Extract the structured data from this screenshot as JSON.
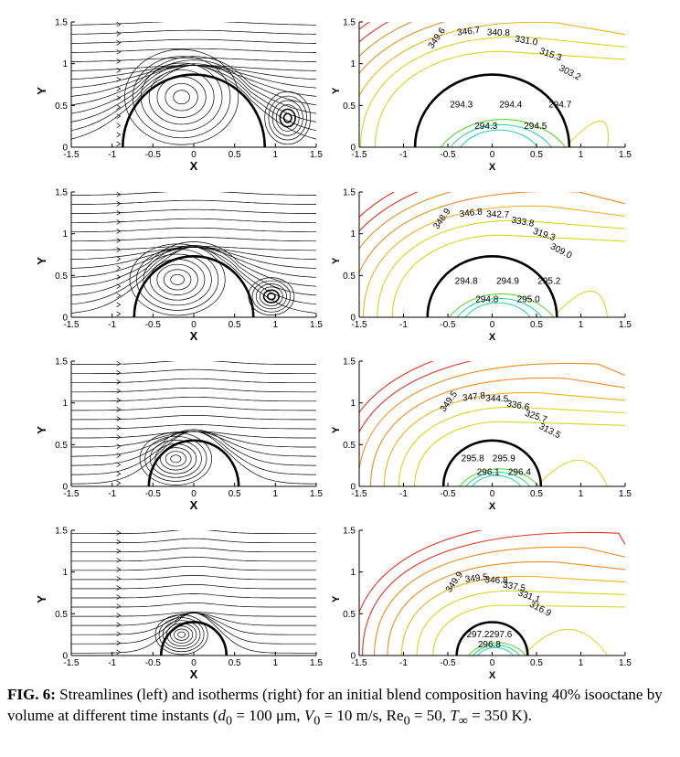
{
  "caption": {
    "label": "FIG. 6:",
    "text_1": "Streamlines (left) and isotherms (right) for an initial blend composition having 40% isooctane by volume at different time instants (",
    "d0_sym": "d",
    "d0_sub": "0",
    "d0_val": " = 100 μm, ",
    "v0_sym": "V",
    "v0_sub": "0",
    "v0_val": " = 10 m/s, Re",
    "re_sub": "0",
    "re_val": " = 50, ",
    "t_sym": "T",
    "t_sub": "∞",
    "t_val": " = 350 K)."
  },
  "axes": {
    "xlabel": "X",
    "ylabel": "Y",
    "x_ticks": [
      "-1.5",
      "-1",
      "-0.5",
      "0",
      "0.5",
      "1",
      "1.5"
    ],
    "y_ticks": [
      "0",
      "0.5",
      "1",
      "1.5"
    ]
  },
  "colors": {
    "droplet": "#000000",
    "streamline": "#000000",
    "isotherm_hot": "#e8321e",
    "isotherm_warm": "#f08c1e",
    "isotherm_mid": "#f2b21a",
    "isotherm_cool": "#d6d61e",
    "isotherm_green": "#52d61e",
    "isotherm_cyan": "#1ed6a0"
  },
  "chart_data": [
    {
      "type": "streamline",
      "panel": "row1-left",
      "xlim": [
        -1.5,
        1.5
      ],
      "ylim": [
        0,
        1.5
      ],
      "droplet_radius": 0.87,
      "vortex_inside": [
        -0.15,
        0.6
      ],
      "vortex_wake": [
        1.15,
        0.35
      ]
    },
    {
      "type": "contour",
      "panel": "row1-right",
      "xlim": [
        -1.5,
        1.5
      ],
      "ylim": [
        0,
        1.5
      ],
      "droplet_radius": 0.87,
      "contour_labels": [
        "349.6",
        "346.7",
        "340.8",
        "331.0",
        "315.3",
        "303.2",
        "294.3",
        "294.3",
        "294.4",
        "294.5",
        "294.7"
      ]
    },
    {
      "type": "streamline",
      "panel": "row2-left",
      "xlim": [
        -1.5,
        1.5
      ],
      "ylim": [
        0,
        1.5
      ],
      "droplet_radius": 0.73,
      "vortex_inside": [
        -0.2,
        0.45
      ],
      "vortex_wake": [
        0.95,
        0.25
      ]
    },
    {
      "type": "contour",
      "panel": "row2-right",
      "xlim": [
        -1.5,
        1.5
      ],
      "ylim": [
        0,
        1.5
      ],
      "droplet_radius": 0.73,
      "contour_labels": [
        "348.9",
        "346.8",
        "342.7",
        "333.8",
        "319.3",
        "309.0",
        "294.8",
        "294.8",
        "294.9",
        "295.0",
        "295.2"
      ]
    },
    {
      "type": "streamline",
      "panel": "row3-left",
      "xlim": [
        -1.5,
        1.5
      ],
      "ylim": [
        0,
        1.5
      ],
      "droplet_radius": 0.55,
      "vortex_inside": [
        -0.22,
        0.33
      ]
    },
    {
      "type": "contour",
      "panel": "row3-right",
      "xlim": [
        -1.5,
        1.5
      ],
      "ylim": [
        0,
        1.5
      ],
      "droplet_radius": 0.55,
      "contour_labels": [
        "349.5",
        "347.8",
        "344.5",
        "336.6",
        "325.7",
        "313.5",
        "295.8",
        "296.1",
        "295.9",
        "296.4"
      ]
    },
    {
      "type": "streamline",
      "panel": "row4-left",
      "xlim": [
        -1.5,
        1.5
      ],
      "ylim": [
        0,
        1.5
      ],
      "droplet_radius": 0.4,
      "vortex_inside": [
        -0.15,
        0.25
      ]
    },
    {
      "type": "contour",
      "panel": "row4-right",
      "xlim": [
        -1.5,
        1.5
      ],
      "ylim": [
        0,
        1.5
      ],
      "droplet_radius": 0.4,
      "contour_labels": [
        "349.9",
        "349.5",
        "346.8",
        "337.5",
        "331.1",
        "316.9",
        "297.2",
        "296.8",
        "297.6"
      ]
    }
  ]
}
